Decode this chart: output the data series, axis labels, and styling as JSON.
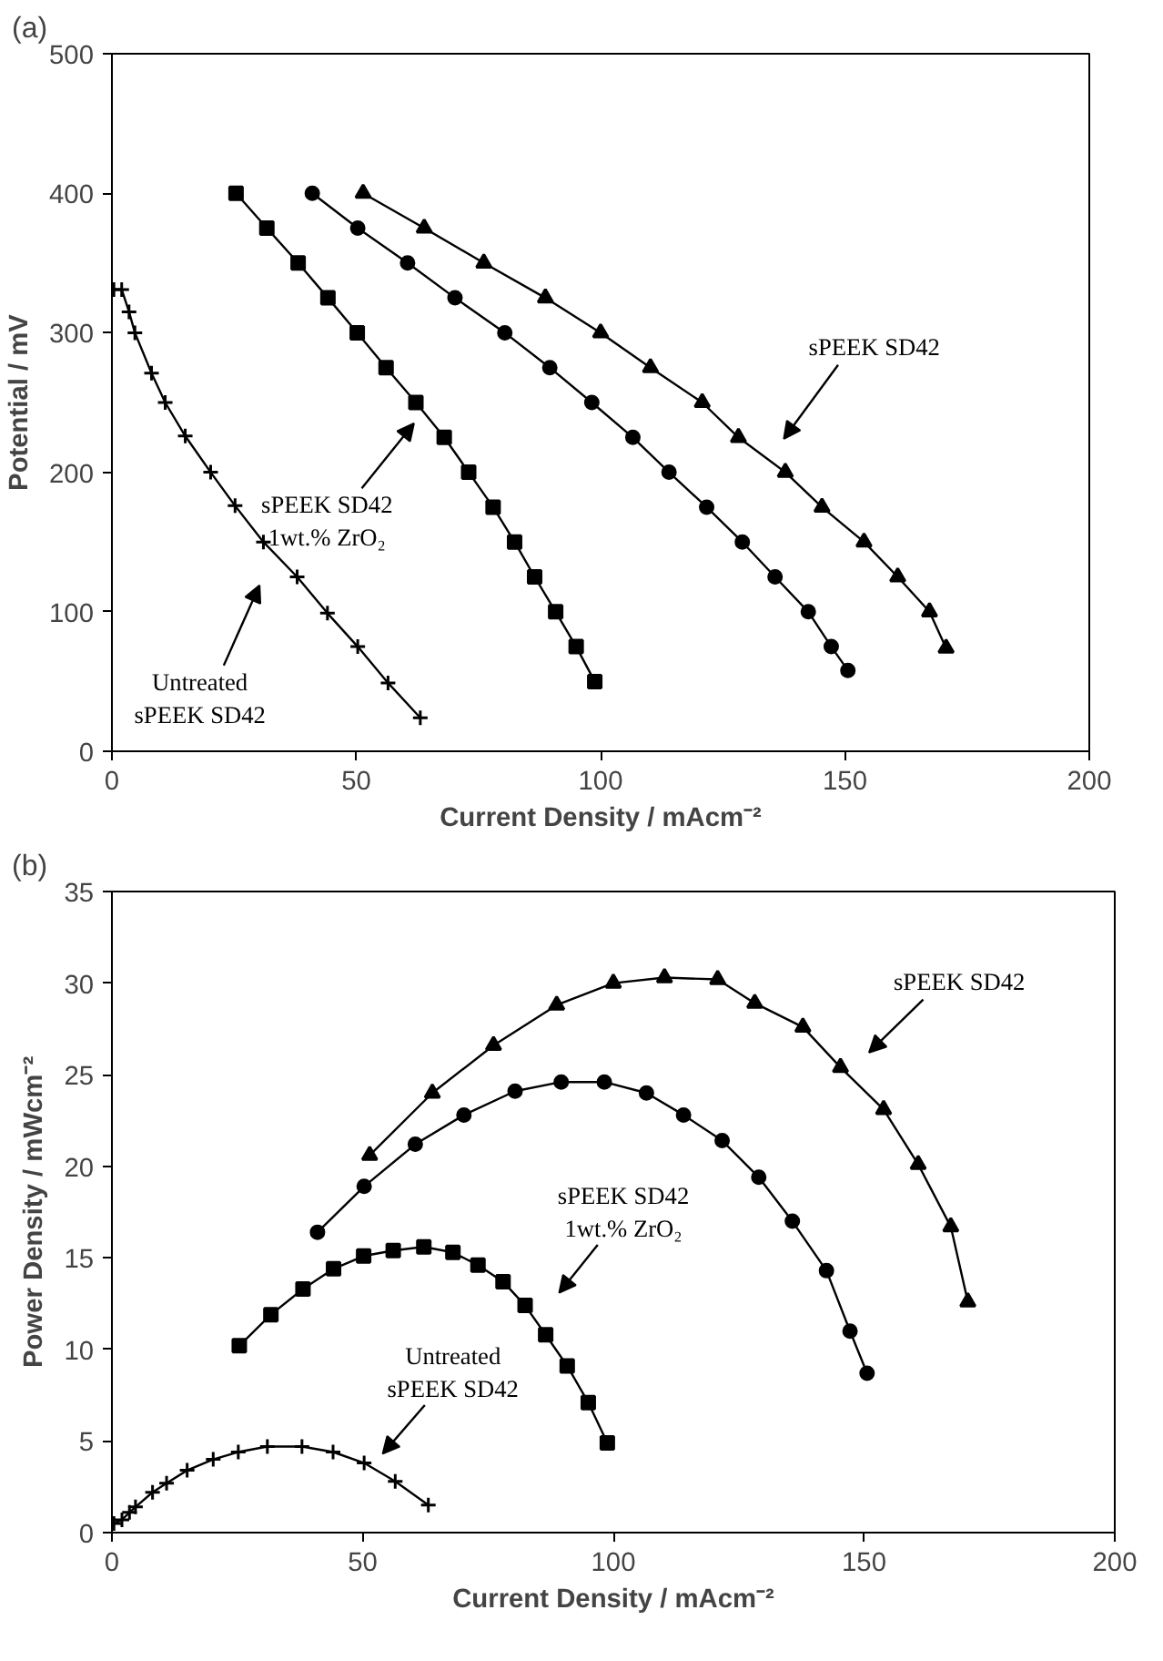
{
  "chart_data": [
    {
      "type": "line",
      "title": "(a)",
      "xlabel": "Current Density / mAcm⁻²",
      "ylabel": "Potential / mV",
      "xlim": [
        0,
        200
      ],
      "ylim": [
        0,
        500
      ],
      "xticks": [
        0,
        50,
        100,
        150,
        200
      ],
      "yticks": [
        0,
        100,
        200,
        300,
        400,
        500
      ],
      "grid": false,
      "series": [
        {
          "color": "#000000",
          "marker": "cross",
          "x": [
            0.4,
            2,
            3.5,
            4.7,
            8.1,
            10.9,
            15,
            20.2,
            25.2,
            31,
            37.9,
            44.1,
            50.3,
            56.5,
            63.1
          ],
          "values": [
            331,
            331,
            315,
            300,
            271,
            250,
            226,
            200,
            176,
            150,
            125,
            99,
            75,
            49,
            24
          ]
        },
        {
          "color": "#000000",
          "marker": "square",
          "x": [
            25.4,
            31.7,
            38.1,
            44.2,
            50.2,
            56.1,
            62.2,
            68,
            73,
            78,
            82.4,
            86.5,
            90.8,
            95,
            98.8
          ],
          "values": [
            400,
            375,
            350,
            325,
            300,
            275,
            250,
            225,
            200,
            175,
            150,
            125,
            100,
            75,
            50
          ]
        },
        {
          "color": "#000000",
          "marker": "circle",
          "x": [
            41,
            50.3,
            60.5,
            70.2,
            80.4,
            89.6,
            98.2,
            106.6,
            114,
            121.7,
            129,
            135.7,
            142.5,
            147.2,
            150.6
          ],
          "values": [
            400,
            375,
            350,
            325,
            300,
            275,
            250,
            225,
            200,
            175,
            150,
            125,
            100,
            75,
            58
          ]
        },
        {
          "color": "#000000",
          "marker": "triangle",
          "x": [
            51.4,
            63.9,
            76.1,
            88.7,
            100,
            110.2,
            120.8,
            128.2,
            137.8,
            145.3,
            153.9,
            160.8,
            167.3,
            170.7
          ],
          "values": [
            400,
            375,
            350,
            325,
            300,
            275,
            250,
            225,
            200,
            175,
            150,
            125,
            100,
            74
          ]
        }
      ],
      "annotations": [
        "Untreated\nsPEEK SD42",
        "sPEEK SD42\n1wt.% ZrO₂",
        "sPEEK SD42"
      ]
    },
    {
      "type": "line",
      "title": "(b)",
      "xlabel": "Current Density / mAcm⁻²",
      "ylabel": "Power Density / mWcm⁻²",
      "xlim": [
        0,
        200
      ],
      "ylim": [
        0,
        35
      ],
      "xticks": [
        0,
        50,
        100,
        150,
        200
      ],
      "yticks": [
        0,
        5,
        10,
        15,
        20,
        25,
        30,
        35
      ],
      "grid": false,
      "series": [
        {
          "color": "#000000",
          "marker": "cross",
          "x": [
            0.4,
            2,
            3.5,
            4.7,
            8.1,
            10.9,
            15,
            20.2,
            25.2,
            31,
            37.9,
            44.1,
            50.3,
            56.5,
            63.1
          ],
          "values": [
            0.5,
            0.7,
            1.1,
            1.4,
            2.2,
            2.7,
            3.4,
            4.0,
            4.4,
            4.7,
            4.7,
            4.4,
            3.8,
            2.8,
            1.5
          ]
        },
        {
          "color": "#000000",
          "marker": "square",
          "x": [
            25.4,
            31.7,
            38.1,
            44.2,
            50.2,
            56.1,
            62.2,
            68,
            73,
            78,
            82.4,
            86.5,
            90.8,
            95,
            98.8
          ],
          "values": [
            10.2,
            11.9,
            13.3,
            14.4,
            15.1,
            15.4,
            15.6,
            15.3,
            14.6,
            13.7,
            12.4,
            10.8,
            9.1,
            7.1,
            4.9
          ]
        },
        {
          "color": "#000000",
          "marker": "circle",
          "x": [
            41,
            50.3,
            60.5,
            70.2,
            80.4,
            89.6,
            98.2,
            106.6,
            114,
            121.7,
            129,
            135.7,
            142.5,
            147.2,
            150.6
          ],
          "values": [
            16.4,
            18.9,
            21.2,
            22.8,
            24.1,
            24.6,
            24.6,
            24.0,
            22.8,
            21.4,
            19.4,
            17.0,
            14.3,
            11.0,
            8.7
          ]
        },
        {
          "color": "#000000",
          "marker": "triangle",
          "x": [
            51.4,
            63.9,
            76.1,
            88.7,
            100,
            110.2,
            120.8,
            128.2,
            137.8,
            145.3,
            153.9,
            160.8,
            167.3,
            170.7
          ],
          "values": [
            20.6,
            24.0,
            26.6,
            28.8,
            30.0,
            30.3,
            30.2,
            28.9,
            27.6,
            25.4,
            23.1,
            20.1,
            16.7,
            12.6
          ]
        }
      ],
      "annotations": [
        "Untreated\nsPEEK SD42",
        "sPEEK SD42\n1wt.% ZrO₂",
        "sPEEK SD42"
      ]
    }
  ]
}
